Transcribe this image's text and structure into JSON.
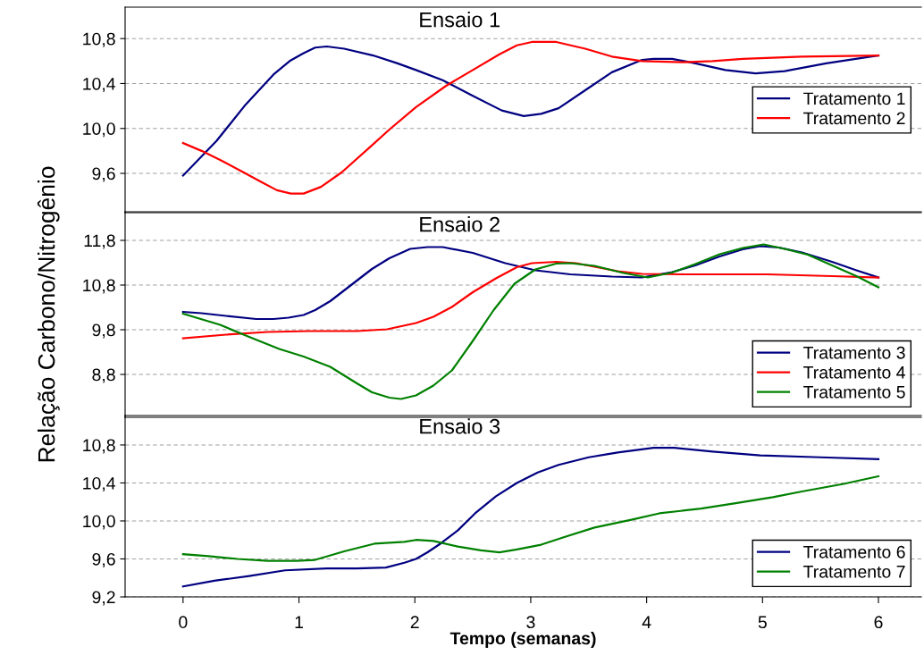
{
  "chart_data": [
    {
      "type": "line",
      "title": "Ensaio 1",
      "xlim": [
        -0.5,
        6.37
      ],
      "ylim": [
        9.25,
        11.08
      ],
      "yticks": [
        {
          "value": 9.6,
          "label": "9,6"
        },
        {
          "value": 10.0,
          "label": "10,0"
        },
        {
          "value": 10.4,
          "label": "10,4"
        },
        {
          "value": 10.8,
          "label": "10,8"
        }
      ],
      "grid": "y",
      "legend": "right",
      "tick_labels": "y",
      "line_style": "solid",
      "series": [
        {
          "name": "Tratamento 1",
          "color": "#000080",
          "x": [
            0,
            0.29,
            0.53,
            0.78,
            0.92,
            1.04,
            1.14,
            1.24,
            1.39,
            1.64,
            1.85,
            2.01,
            2.24,
            2.5,
            2.75,
            2.94,
            3.09,
            3.24,
            3.47,
            3.7,
            3.96,
            4.06,
            4.22,
            4.42,
            4.68,
            4.94,
            5.19,
            5.55,
            6
          ],
          "values": [
            9.58,
            9.89,
            10.2,
            10.48,
            10.6,
            10.67,
            10.72,
            10.73,
            10.71,
            10.65,
            10.58,
            10.52,
            10.43,
            10.29,
            10.16,
            10.11,
            10.13,
            10.18,
            10.34,
            10.5,
            10.61,
            10.62,
            10.62,
            10.58,
            10.52,
            10.49,
            10.51,
            10.58,
            10.65
          ]
        },
        {
          "name": "Tratamento 2",
          "color": "#ff0000",
          "x": [
            0,
            0.16,
            0.32,
            0.52,
            0.68,
            0.81,
            0.93,
            1.04,
            1.19,
            1.37,
            1.63,
            1.78,
            2.01,
            2.27,
            2.5,
            2.73,
            2.88,
            3.01,
            3.22,
            3.47,
            3.7,
            3.96,
            4.32,
            4.57,
            4.83,
            5.34,
            6
          ],
          "values": [
            9.87,
            9.8,
            9.72,
            9.61,
            9.52,
            9.45,
            9.42,
            9.42,
            9.48,
            9.61,
            9.85,
            9.99,
            10.19,
            10.38,
            10.52,
            10.66,
            10.74,
            10.77,
            10.77,
            10.71,
            10.64,
            10.6,
            10.59,
            10.6,
            10.62,
            10.64,
            10.65
          ]
        }
      ]
    },
    {
      "type": "line",
      "title": "Ensaio 2",
      "ylabel": "Relação Carbono/Nitrogênio",
      "xlim": [
        -0.5,
        6.37
      ],
      "ylim": [
        7.84,
        12.44
      ],
      "yticks": [
        {
          "value": 8.8,
          "label": "8,8"
        },
        {
          "value": 9.8,
          "label": "9,8"
        },
        {
          "value": 10.8,
          "label": "10,8"
        },
        {
          "value": 11.8,
          "label": "11,8"
        }
      ],
      "grid": "y",
      "legend": "lower right",
      "tick_labels": "y",
      "line_style": "solid",
      "series": [
        {
          "name": "Tratamento 3",
          "color": "#000080",
          "x": [
            0,
            0.16,
            0.37,
            0.63,
            0.78,
            0.91,
            1.04,
            1.14,
            1.27,
            1.47,
            1.63,
            1.78,
            1.96,
            2.11,
            2.24,
            2.5,
            2.78,
            3.04,
            3.34,
            3.7,
            3.96,
            4.22,
            4.42,
            4.63,
            4.83,
            4.98,
            5.14,
            5.34,
            5.6,
            5.81,
            6
          ],
          "values": [
            10.2,
            10.17,
            10.11,
            10.04,
            10.04,
            10.07,
            10.13,
            10.24,
            10.44,
            10.84,
            11.16,
            11.4,
            11.61,
            11.65,
            11.65,
            11.52,
            11.29,
            11.13,
            11.04,
            10.99,
            10.97,
            11.09,
            11.24,
            11.44,
            11.6,
            11.67,
            11.64,
            11.53,
            11.32,
            11.13,
            10.97
          ]
        },
        {
          "name": "Tratamento 4",
          "color": "#ff0000",
          "x": [
            0,
            0.37,
            0.73,
            1.09,
            1.5,
            1.76,
            2.01,
            2.16,
            2.32,
            2.5,
            2.7,
            2.88,
            3.01,
            3.22,
            3.39,
            3.55,
            3.75,
            3.96,
            4.32,
            5.04,
            5.6,
            6
          ],
          "values": [
            9.61,
            9.69,
            9.75,
            9.77,
            9.77,
            9.81,
            9.95,
            10.09,
            10.31,
            10.64,
            10.95,
            11.2,
            11.29,
            11.32,
            11.29,
            11.21,
            11.11,
            11.05,
            11.04,
            11.04,
            11.0,
            10.97
          ]
        },
        {
          "name": "Tratamento 5",
          "color": "#008000",
          "x": [
            0,
            0.32,
            0.57,
            0.83,
            1.04,
            1.27,
            1.5,
            1.63,
            1.78,
            1.88,
            2.01,
            2.16,
            2.32,
            2.5,
            2.68,
            2.86,
            3.04,
            3.22,
            3.34,
            3.55,
            3.8,
            4.01,
            4.22,
            4.42,
            4.63,
            4.83,
            5.01,
            5.19,
            5.39,
            5.6,
            5.81,
            6
          ],
          "values": [
            10.16,
            9.91,
            9.64,
            9.37,
            9.2,
            8.97,
            8.6,
            8.4,
            8.28,
            8.25,
            8.33,
            8.55,
            8.89,
            9.55,
            10.24,
            10.83,
            11.15,
            11.28,
            11.29,
            11.23,
            11.07,
            10.97,
            11.08,
            11.27,
            11.49,
            11.63,
            11.71,
            11.61,
            11.48,
            11.24,
            11.0,
            10.75
          ]
        }
      ]
    },
    {
      "type": "line",
      "title": "Ensaio 3",
      "xlabel": "Tempo (semanas)",
      "xlim": [
        -0.5,
        6.37
      ],
      "xticks": [
        0,
        1,
        2,
        3,
        4,
        5,
        6
      ],
      "ylim": [
        9.2,
        11.11
      ],
      "yticks": [
        {
          "value": 9.2,
          "label": "9,2"
        },
        {
          "value": 9.6,
          "label": "9,6"
        },
        {
          "value": 10.0,
          "label": "10,0"
        },
        {
          "value": 10.4,
          "label": "10,4"
        },
        {
          "value": 10.8,
          "label": "10,8"
        }
      ],
      "grid": "y",
      "legend": "lower right",
      "line_style": "solid",
      "series": [
        {
          "name": "Tratamento 6",
          "color": "#000080",
          "x": [
            0,
            0.27,
            0.57,
            0.88,
            1.24,
            1.5,
            1.75,
            1.91,
            2.01,
            2.11,
            2.22,
            2.37,
            2.52,
            2.7,
            2.88,
            3.06,
            3.24,
            3.5,
            3.75,
            4.06,
            4.24,
            4.57,
            4.98,
            5.5,
            6
          ],
          "values": [
            9.31,
            9.37,
            9.42,
            9.48,
            9.5,
            9.5,
            9.51,
            9.56,
            9.6,
            9.67,
            9.76,
            9.9,
            10.08,
            10.26,
            10.4,
            10.51,
            10.59,
            10.67,
            10.72,
            10.77,
            10.77,
            10.73,
            10.69,
            10.67,
            10.65
          ]
        },
        {
          "name": "Tratamento 7",
          "color": "#008000",
          "x": [
            0,
            0.22,
            0.47,
            0.73,
            0.98,
            1.14,
            1.39,
            1.65,
            1.91,
            2.01,
            2.16,
            2.37,
            2.57,
            2.73,
            2.88,
            3.09,
            3.29,
            3.55,
            3.86,
            4.11,
            4.47,
            4.78,
            5.09,
            5.34,
            5.7,
            6
          ],
          "values": [
            9.65,
            9.63,
            9.6,
            9.58,
            9.58,
            9.59,
            9.68,
            9.76,
            9.78,
            9.8,
            9.79,
            9.73,
            9.69,
            9.67,
            9.7,
            9.75,
            9.83,
            9.93,
            10.01,
            10.08,
            10.13,
            10.19,
            10.25,
            10.31,
            10.39,
            10.47
          ]
        }
      ]
    }
  ]
}
